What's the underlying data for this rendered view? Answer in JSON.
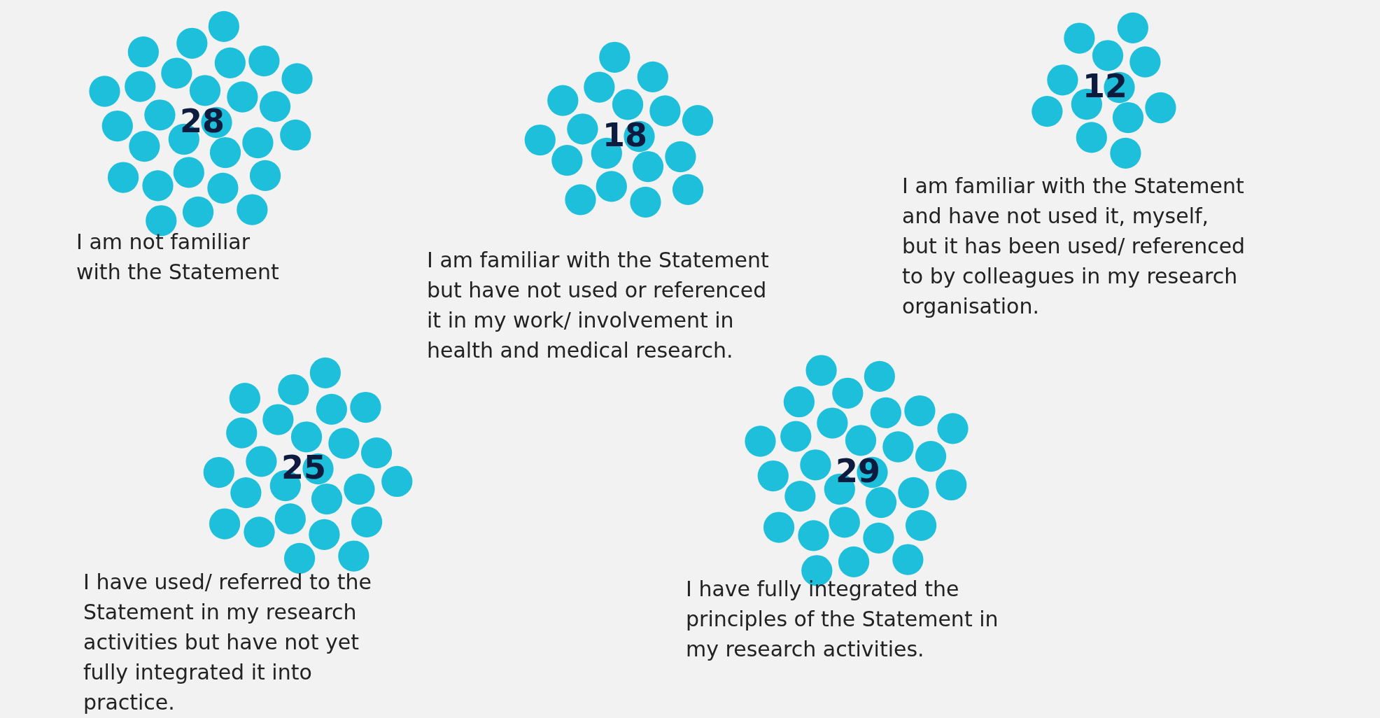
{
  "chart_data": {
    "type": "other",
    "categories": [
      "I am not familiar with the Statement",
      "I am familiar with the Statement but have not used or referenced it in my work/ involvement in health and medical research.",
      "I am familiar with the Statement and have not used it, myself, but it has been used/ referenced to by colleagues in my research organisation.",
      "I have used/ referred to the Statement in my research activities but have not yet fully integrated it into practice.",
      "I have fully integrated the principles of the Statement in my research activities."
    ],
    "values": [
      28,
      18,
      12,
      25,
      29
    ],
    "color": "#1ebfda",
    "data_labels": true
  }
}
